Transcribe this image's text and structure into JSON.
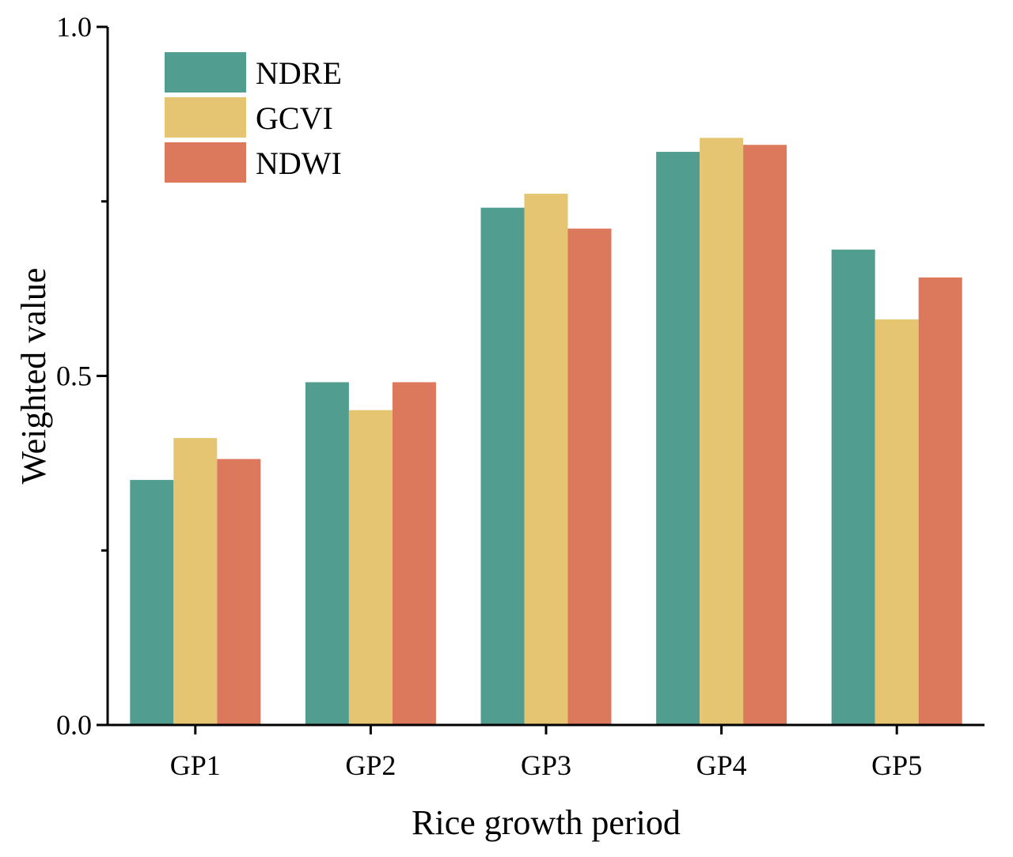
{
  "chart_data": {
    "type": "bar",
    "title": "",
    "xlabel": "Rice growth period",
    "ylabel": "Weighted value",
    "categories": [
      "GP1",
      "GP2",
      "GP3",
      "GP4",
      "GP5"
    ],
    "series": [
      {
        "name": "NDRE",
        "color": "#519e91",
        "values": [
          0.351,
          0.491,
          0.741,
          0.821,
          0.681
        ]
      },
      {
        "name": "GCVI",
        "color": "#e5c572",
        "values": [
          0.411,
          0.451,
          0.761,
          0.841,
          0.581
        ]
      },
      {
        "name": "NDWI",
        "color": "#dc785c",
        "values": [
          0.381,
          0.491,
          0.711,
          0.831,
          0.641
        ]
      }
    ],
    "ylim": [
      0,
      1.0
    ],
    "yticks": [
      {
        "value": 0.0,
        "label": "0.0"
      },
      {
        "value": 0.5,
        "label": "0.5"
      },
      {
        "value": 1.0,
        "label": "1.0"
      }
    ],
    "yminor_ticks": [
      0.25,
      0.75
    ],
    "legend_position": "top-left",
    "grid": false
  }
}
